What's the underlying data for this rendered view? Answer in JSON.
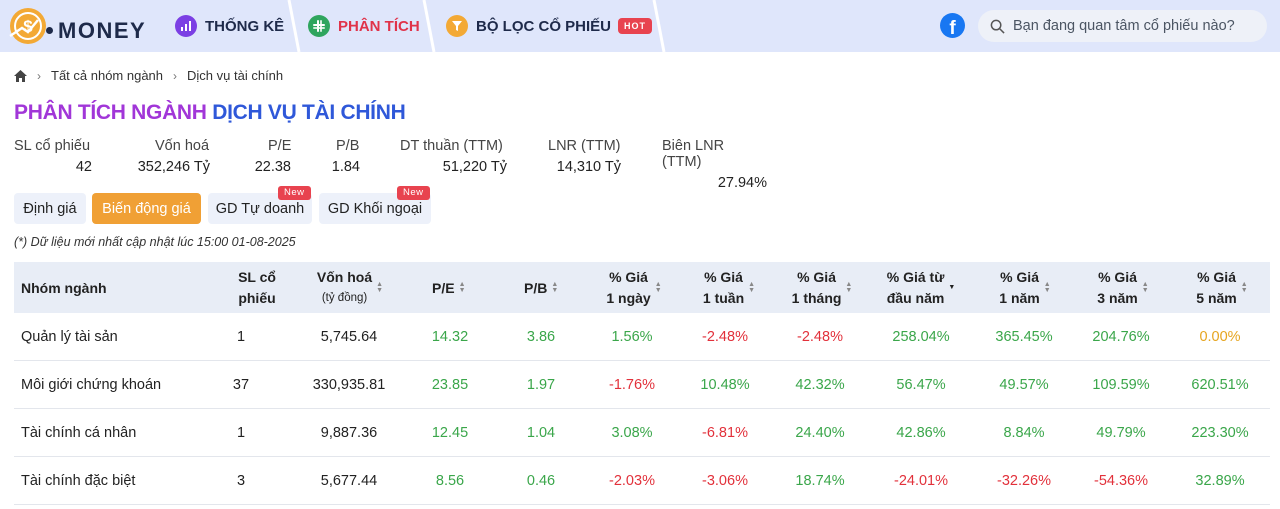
{
  "nav": {
    "logo_text": "MONEY",
    "items": [
      {
        "label": "THỐNG KÊ",
        "icon": "chart-icon"
      },
      {
        "label": "PHÂN TÍCH",
        "icon": "slack-icon"
      },
      {
        "label": "BỘ LỌC CỔ PHIẾU",
        "icon": "filter-icon",
        "badge": "HOT"
      }
    ],
    "search_placeholder": "Bạn đang quan tâm cổ phiếu nào?"
  },
  "breadcrumb": [
    "Tất cả nhóm ngành",
    "Dịch vụ tài chính"
  ],
  "title": {
    "prefix": "PHÂN TÍCH NGÀNH",
    "sector": "DỊCH VỤ TÀI CHÍNH"
  },
  "stats": [
    {
      "label": "SL cổ phiếu",
      "value": "42"
    },
    {
      "label": "Vốn hoá",
      "value": "352,246 Tỷ"
    },
    {
      "label": "P/E",
      "value": "22.38"
    },
    {
      "label": "P/B",
      "value": "1.84"
    },
    {
      "label": "DT thuần (TTM)",
      "value": "51,220 Tỷ"
    },
    {
      "label": "LNR (TTM)",
      "value": "14,310 Tỷ"
    },
    {
      "label": "Biên LNR (TTM)",
      "value": "27.94%"
    }
  ],
  "tabs": [
    {
      "label": "Định giá"
    },
    {
      "label": "Biến động giá"
    },
    {
      "label": "GD Tự doanh",
      "badge": "New"
    },
    {
      "label": "GD Khối ngoại",
      "badge": "New"
    }
  ],
  "note": "(*) Dữ liệu mới nhất cập nhật lúc 15:00 01-08-2025",
  "table": {
    "headers": [
      {
        "l1": "Nhóm ngành"
      },
      {
        "l1": "SL cổ",
        "l2": "phiếu"
      },
      {
        "l1": "Vốn hoá",
        "l2": "(tỷ đồng)"
      },
      {
        "l1": "P/E"
      },
      {
        "l1": "P/B"
      },
      {
        "l1": "% Giá",
        "l2": "1 ngày"
      },
      {
        "l1": "% Giá",
        "l2": "1 tuần"
      },
      {
        "l1": "% Giá",
        "l2": "1 tháng"
      },
      {
        "l1": "% Giá từ",
        "l2": "đầu năm"
      },
      {
        "l1": "% Giá",
        "l2": "1 năm"
      },
      {
        "l1": "% Giá",
        "l2": "3 năm"
      },
      {
        "l1": "% Giá",
        "l2": "5 năm"
      }
    ],
    "rows": [
      [
        "Quản lý tài sản",
        "1",
        "5,745.64",
        "14.32",
        "3.86",
        "1.56%",
        "-2.48%",
        "-2.48%",
        "258.04%",
        "365.45%",
        "204.76%",
        "0.00%"
      ],
      [
        "Môi giới chứng khoán",
        "37",
        "330,935.81",
        "23.85",
        "1.97",
        "-1.76%",
        "10.48%",
        "42.32%",
        "56.47%",
        "49.57%",
        "109.59%",
        "620.51%"
      ],
      [
        "Tài chính cá nhân",
        "1",
        "9,887.36",
        "12.45",
        "1.04",
        "3.08%",
        "-6.81%",
        "24.40%",
        "42.86%",
        "8.84%",
        "49.79%",
        "223.30%"
      ],
      [
        "Tài chính đặc biệt",
        "3",
        "5,677.44",
        "8.56",
        "0.46",
        "-2.03%",
        "-3.06%",
        "18.74%",
        "-24.01%",
        "-32.26%",
        "-54.36%",
        "32.89%"
      ]
    ]
  },
  "colors": {
    "positive": "#3aa64a",
    "negative": "#e2313b",
    "neutral": "#e6a520"
  }
}
